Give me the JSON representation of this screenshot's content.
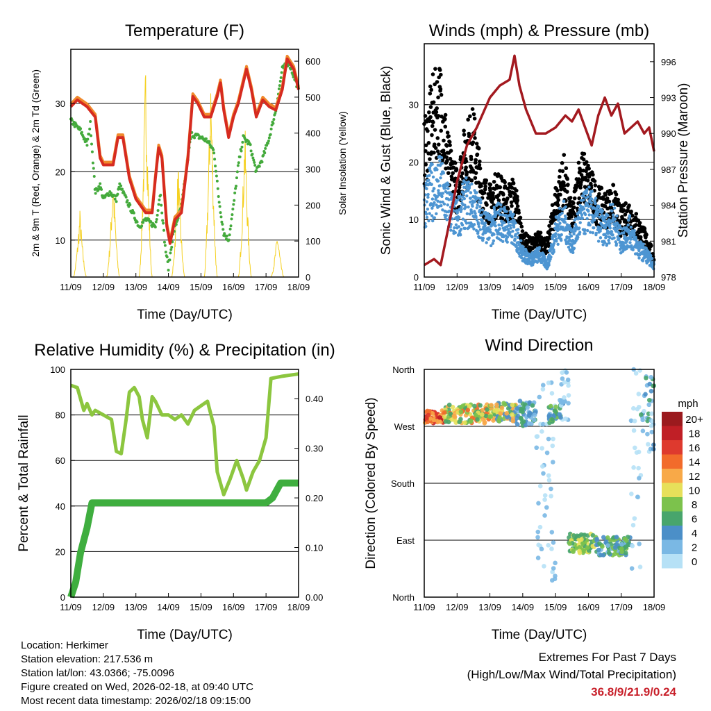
{
  "footer": {
    "location": "Location: Herkimer",
    "elevation": "Station elevation: 217.536 m",
    "latlon": "Station lat/lon: 43.0366; -75.0096",
    "created": "Figure created on Wed, 2026-02-18, at 09:40 UTC",
    "recent": "Most recent data timestamp: 2026/02/18 09:15:00",
    "extremes_title": "Extremes For Past 7 Days",
    "extremes_sub": "(High/Low/Max Wind/Total Precipitation)",
    "extremes_values": "36.8/9/21.9/0.24"
  },
  "chart_data": [
    {
      "type": "line",
      "title": "Temperature (F)",
      "xlabel": "Time (Day/UTC)",
      "ylabel": "2m & 9m T (Red, Orange) & 2m Td (Green)",
      "y2label": "Solar Insolation (Yellow)",
      "xticks": [
        "11/09",
        "12/09",
        "13/09",
        "14/09",
        "15/09",
        "16/09",
        "17/09",
        "18/09"
      ],
      "xlim": [
        0,
        7
      ],
      "ylim": [
        4.6,
        37.9
      ],
      "yticks": [
        10,
        20,
        30
      ],
      "y2lim": [
        0,
        633
      ],
      "y2ticks": [
        0,
        100,
        200,
        300,
        400,
        500,
        600
      ],
      "series": [
        {
          "name": "2m T",
          "color": "#d62b20",
          "x": [
            0,
            0.2,
            0.5,
            0.75,
            0.9,
            1.0,
            1.3,
            1.45,
            1.6,
            1.8,
            2.0,
            2.3,
            2.5,
            2.6,
            2.7,
            2.8,
            2.95,
            3.05,
            3.2,
            3.4,
            3.6,
            3.75,
            3.9,
            4.1,
            4.3,
            4.5,
            4.6,
            4.7,
            4.85,
            5.0,
            5.15,
            5.4,
            5.55,
            5.7,
            5.9,
            6.1,
            6.3,
            6.5,
            6.65,
            6.85,
            7.0
          ],
          "y": [
            29.5,
            30.5,
            29.5,
            28,
            22,
            21,
            21,
            25,
            25,
            19,
            16,
            14,
            14,
            19,
            23.5,
            22,
            12,
            9.5,
            13,
            14,
            22,
            31,
            30,
            28,
            28,
            31,
            33,
            29,
            25,
            28,
            30,
            35,
            32,
            28,
            30.5,
            29.5,
            29,
            32,
            36.5,
            35,
            32
          ]
        },
        {
          "name": "2m Td",
          "color": "#44aa3c",
          "x": [
            0,
            0.3,
            0.5,
            0.6,
            0.75,
            0.9,
            1.0,
            1.2,
            1.4,
            1.5,
            1.8,
            2.1,
            2.3,
            2.6,
            2.75,
            2.9,
            3.0,
            3.15,
            3.4,
            3.6,
            3.7,
            4.0,
            4.2,
            4.4,
            4.55,
            4.7,
            4.85,
            5.0,
            5.15,
            5.3,
            5.5,
            5.7,
            5.9,
            6.1,
            6.3,
            6.5,
            6.7,
            7.0
          ],
          "y": [
            27.5,
            26,
            24,
            27,
            17,
            18,
            16,
            17,
            16,
            18,
            15,
            12,
            13,
            12,
            17,
            9,
            6,
            11,
            15,
            22,
            25.5,
            25,
            24.5,
            23,
            16,
            11,
            10,
            15,
            21,
            25,
            24,
            20,
            22,
            25,
            29,
            35,
            36,
            32
          ]
        },
        {
          "name": "Solar",
          "color": "#f5d020",
          "peak_x": [
            0.28,
            1.3,
            2.3,
            3.3,
            4.3,
            5.35,
            6.35
          ],
          "peak_y": [
            190,
            300,
            620,
            330,
            590,
            440,
            130
          ]
        }
      ]
    },
    {
      "type": "scatter",
      "title": "Winds (mph) & Pressure (mb)",
      "xlabel": "Time (Day/UTC)",
      "ylabel": "Sonic Wind & Gust (Blue, Black)",
      "y2label": "Station Pressure (Maroon)",
      "xticks": [
        "11/09",
        "12/09",
        "13/09",
        "14/09",
        "15/09",
        "16/09",
        "17/09",
        "18/09"
      ],
      "xlim": [
        0,
        7
      ],
      "ylim": [
        0,
        40.6
      ],
      "yticks": [
        0,
        10,
        20,
        30
      ],
      "y2lim": [
        978,
        997.5
      ],
      "y2ticks": [
        978,
        981,
        984,
        987,
        990,
        993,
        996
      ],
      "x": [
        0,
        0.25,
        0.5,
        0.75,
        1,
        1.25,
        1.5,
        1.75,
        2,
        2.25,
        2.5,
        2.75,
        3,
        3.25,
        3.5,
        3.75,
        4,
        4.25,
        4.5,
        4.75,
        5,
        5.25,
        5.5,
        5.75,
        6,
        6.25,
        6.5,
        6.75,
        7
      ],
      "series": [
        {
          "name": "Wind",
          "color": "#4d95d2",
          "y": [
            13,
            15,
            16,
            12,
            10,
            13,
            12,
            10,
            8,
            10,
            9,
            8,
            4,
            3,
            4,
            2,
            8,
            10,
            6,
            10,
            12,
            10,
            8,
            10,
            6,
            8,
            5,
            4,
            2
          ]
        },
        {
          "name": "Gust",
          "color": "#000000",
          "y": [
            20,
            26,
            28,
            18,
            14,
            20,
            22,
            14,
            12,
            14,
            12,
            13,
            6,
            5,
            6,
            5,
            12,
            16,
            9,
            17,
            15,
            12,
            11,
            12,
            9,
            10,
            8,
            6,
            3
          ]
        },
        {
          "name": "Pressure",
          "color": "#a3191f",
          "px": [
            0,
            0.3,
            0.5,
            0.8,
            1.0,
            1.3,
            1.6,
            2.0,
            2.3,
            2.6,
            2.75,
            2.9,
            3.1,
            3.4,
            3.7,
            4.0,
            4.3,
            4.5,
            4.7,
            4.9,
            5.1,
            5.3,
            5.5,
            5.7,
            5.9,
            6.1,
            6.3,
            6.5,
            6.7,
            6.85,
            7.0
          ],
          "py": [
            979,
            979.5,
            979,
            983,
            986,
            989,
            990.5,
            993,
            994,
            994.5,
            996.5,
            994,
            992,
            990,
            990,
            990.5,
            991.5,
            991,
            992,
            990.5,
            989,
            991.5,
            993,
            991.5,
            992.5,
            990,
            990.5,
            991,
            990,
            990.5,
            988.5
          ]
        }
      ]
    },
    {
      "type": "line",
      "title": "Relative Humidity (%) & Precipitation (in)",
      "xlabel": "Time (Day/UTC)",
      "ylabel": "Percent & Total Rainfall",
      "xticks": [
        "11/09",
        "12/09",
        "13/09",
        "14/09",
        "15/09",
        "16/09",
        "17/09",
        "18/09"
      ],
      "xlim": [
        0,
        7
      ],
      "ylim": [
        0,
        100
      ],
      "yticks": [
        0,
        20,
        40,
        60,
        80,
        100
      ],
      "y2lim": [
        0,
        0.459
      ],
      "y2ticks": [
        "0.00",
        "0.10",
        "0.20",
        "0.30",
        "0.40"
      ],
      "series": [
        {
          "name": "RH",
          "color": "#8cc63f",
          "x": [
            0,
            0.2,
            0.4,
            0.5,
            0.65,
            0.75,
            1.0,
            1.25,
            1.4,
            1.55,
            1.7,
            1.8,
            1.95,
            2.1,
            2.2,
            2.35,
            2.5,
            2.6,
            2.8,
            3.0,
            3.2,
            3.4,
            3.6,
            3.8,
            4.0,
            4.2,
            4.4,
            4.5,
            4.7,
            4.9,
            5.1,
            5.3,
            5.4,
            5.6,
            5.8,
            6.0,
            6.15,
            6.5,
            7.0
          ],
          "y": [
            93,
            92,
            82,
            85,
            80,
            82,
            80,
            78,
            64,
            63,
            78,
            90,
            92,
            88,
            78,
            70,
            88,
            86,
            80,
            80,
            78,
            80,
            76,
            82,
            84,
            86,
            75,
            55,
            45,
            52,
            60,
            52,
            47,
            55,
            60,
            70,
            96,
            97,
            98
          ]
        },
        {
          "name": "Precip",
          "color": "#3fae3f",
          "x": [
            0,
            0.15,
            0.3,
            0.5,
            0.65,
            0.7,
            6.0,
            6.2,
            6.45,
            7.0
          ],
          "y": [
            0,
            0.03,
            0.09,
            0.14,
            0.19,
            0.19,
            0.19,
            0.2,
            0.23,
            0.23
          ]
        }
      ]
    },
    {
      "type": "scatter",
      "title": "Wind Direction",
      "xlabel": "Time (Day/UTC)",
      "ylabel": "Direction (Colored By Speed)",
      "xticks": [
        "11/09",
        "12/09",
        "13/09",
        "14/09",
        "15/09",
        "16/09",
        "17/09",
        "18/09"
      ],
      "xlim": [
        0,
        7
      ],
      "ylim": [
        0,
        360
      ],
      "yticks": [
        "North",
        "East",
        "South",
        "West",
        "North"
      ],
      "legend": {
        "title": "mph",
        "labels": [
          "20+",
          "18",
          "16",
          "14",
          "12",
          "10",
          "8",
          "6",
          "4",
          "2",
          "0"
        ],
        "colors": [
          "#9b1a1e",
          "#c01f26",
          "#de3a2e",
          "#f26b2b",
          "#f8a948",
          "#e7e05a",
          "#7cc24c",
          "#48a56c",
          "#4b8fc8",
          "#7ab8e4",
          "#b6e1f6"
        ]
      },
      "clusters": [
        {
          "t": [
            0,
            0.6
          ],
          "dir": 285,
          "spread": 10,
          "speed": [
            12,
            20
          ]
        },
        {
          "t": [
            0.6,
            2.0
          ],
          "dir": 290,
          "spread": 15,
          "speed": [
            6,
            16
          ]
        },
        {
          "t": [
            2.0,
            2.8
          ],
          "dir": 292,
          "spread": 15,
          "speed": [
            4,
            14
          ]
        },
        {
          "t": [
            2.8,
            3.4
          ],
          "dir": 290,
          "spread": 20,
          "speed": [
            2,
            8
          ]
        },
        {
          "t": [
            3.4,
            4.0
          ],
          "dir": 190,
          "spread": 170,
          "speed": [
            0,
            4
          ]
        },
        {
          "t": [
            3.8,
            4.15
          ],
          "dir": 290,
          "spread": 15,
          "speed": [
            4,
            10
          ]
        },
        {
          "t": [
            4.1,
            4.4
          ],
          "dir": 320,
          "spread": 40,
          "speed": [
            0,
            5
          ]
        },
        {
          "t": [
            4.4,
            5.2
          ],
          "dir": 85,
          "spread": 15,
          "speed": [
            6,
            12
          ]
        },
        {
          "t": [
            5.2,
            6.3
          ],
          "dir": 80,
          "spread": 15,
          "speed": [
            3,
            10
          ]
        },
        {
          "t": [
            6.3,
            6.6
          ],
          "dir": 200,
          "spread": 160,
          "speed": [
            0,
            3
          ]
        },
        {
          "t": [
            6.6,
            7.0
          ],
          "dir": 290,
          "spread": 60,
          "speed": [
            1,
            8
          ]
        }
      ]
    }
  ]
}
